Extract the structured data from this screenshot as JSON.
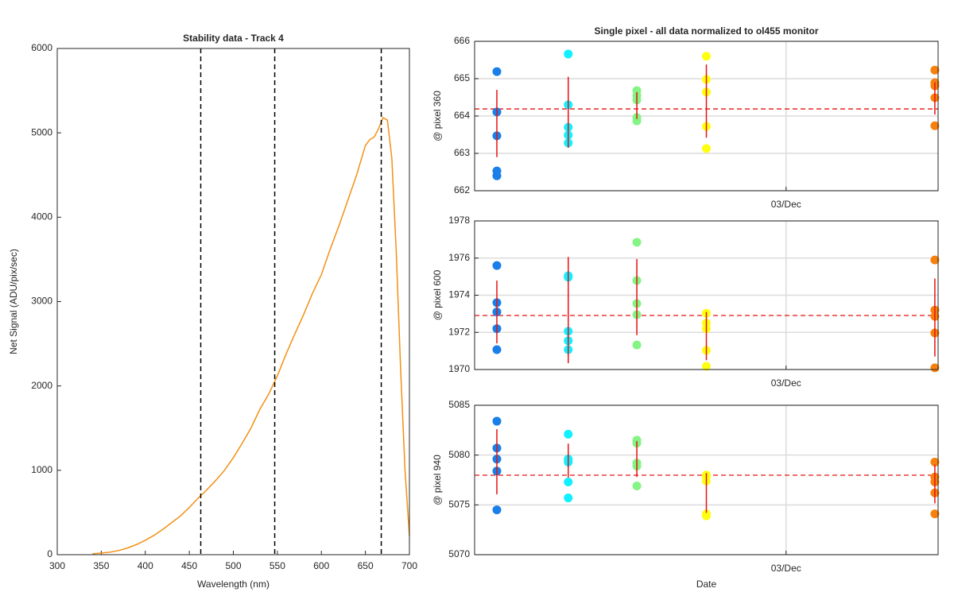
{
  "chart_data": [
    {
      "type": "line",
      "title": "Stability data - Track 4",
      "xlabel": "Wavelength (nm)",
      "ylabel": "Net Signal (ADU/pix/sec)",
      "x": [
        340,
        350,
        360,
        370,
        380,
        390,
        400,
        410,
        420,
        430,
        440,
        450,
        460,
        470,
        480,
        490,
        500,
        510,
        520,
        530,
        540,
        550,
        560,
        570,
        580,
        590,
        600,
        610,
        620,
        630,
        640,
        650,
        655,
        660,
        665,
        670,
        675,
        680,
        685,
        690,
        695,
        700
      ],
      "values": [
        10,
        20,
        30,
        50,
        80,
        120,
        170,
        230,
        300,
        380,
        460,
        560,
        670,
        770,
        880,
        1000,
        1150,
        1320,
        1500,
        1720,
        1900,
        2120,
        2380,
        2620,
        2850,
        3100,
        3320,
        3620,
        3900,
        4200,
        4500,
        4850,
        4920,
        4950,
        5050,
        5180,
        5150,
        4700,
        3600,
        2200,
        1000,
        220
      ],
      "color": "#f39014",
      "vlines": [
        463,
        547,
        668
      ],
      "xlim": [
        300,
        700
      ],
      "xticks": [
        300,
        350,
        400,
        450,
        500,
        550,
        600,
        650,
        700
      ],
      "ylim": [
        0,
        6000
      ],
      "yticks": [
        0,
        1000,
        2000,
        3000,
        4000,
        5000,
        6000
      ],
      "grid": false
    },
    {
      "type": "scatter",
      "title": "Single pixel - all data normalized to ol455 monitor",
      "ylabel": "@ pixel 360",
      "xlim": [
        0,
        10
      ],
      "xticks": [
        {
          "value": 6.72,
          "label": "03/Dec"
        }
      ],
      "ylim": [
        662,
        666
      ],
      "yticks": [
        662,
        663,
        664,
        665,
        666
      ],
      "grid": true,
      "series": [
        {
          "color": "#1a7fe8",
          "x": [
            0.48,
            0.48,
            0.48,
            0.48,
            0.48
          ],
          "values": [
            665.19,
            664.11,
            663.47,
            662.53,
            662.4
          ]
        },
        {
          "color": "#10f0ff",
          "x": [
            2.02,
            2.02,
            2.02,
            2.02,
            2.02
          ],
          "values": [
            665.66,
            664.3,
            663.7,
            663.49,
            663.28
          ]
        },
        {
          "color": "#84f484",
          "x": [
            3.5,
            3.5,
            3.5,
            3.5,
            3.5
          ],
          "values": [
            664.68,
            664.55,
            664.43,
            663.96,
            663.87
          ]
        },
        {
          "color": "#ffff10",
          "x": [
            5.0,
            5.0,
            5.0,
            5.0,
            5.0
          ],
          "values": [
            665.6,
            664.98,
            664.64,
            663.72,
            663.13
          ]
        },
        {
          "color": "#f8800c",
          "x": [
            9.93,
            9.93,
            9.93,
            9.93,
            9.93
          ],
          "values": [
            665.23,
            664.89,
            664.81,
            664.49,
            663.74
          ]
        }
      ],
      "error_bars": [
        {
          "x": 0.48,
          "value": 663.8,
          "error": 0.9
        },
        {
          "x": 2.02,
          "value": 664.1,
          "error": 0.95
        },
        {
          "x": 3.5,
          "value": 664.28,
          "error": 0.36
        },
        {
          "x": 5.0,
          "value": 664.4,
          "error": 0.98
        },
        {
          "x": 9.93,
          "value": 664.47,
          "error": 0.43
        }
      ],
      "error_color": "#e81010",
      "mean_line": 664.19
    },
    {
      "type": "scatter",
      "ylabel": "@ pixel 600",
      "xlim": [
        0,
        10
      ],
      "xticks": [
        {
          "value": 6.72,
          "label": "03/Dec"
        }
      ],
      "ylim": [
        1970,
        1978
      ],
      "yticks": [
        1970,
        1972,
        1974,
        1976,
        1978
      ],
      "grid": true,
      "series": [
        {
          "color": "#1a7fe8",
          "x": [
            0.48,
            0.48,
            0.48,
            0.48,
            0.48
          ],
          "values": [
            1975.6,
            1973.6,
            1973.1,
            1972.2,
            1971.07
          ]
        },
        {
          "color": "#10f0ff",
          "x": [
            2.02,
            2.02,
            2.02,
            2.02,
            2.02
          ],
          "values": [
            1975.05,
            1974.97,
            1972.06,
            1971.55,
            1971.07
          ]
        },
        {
          "color": "#84f484",
          "x": [
            3.5,
            3.5,
            3.5,
            3.5,
            3.5
          ],
          "values": [
            1976.85,
            1974.79,
            1973.55,
            1972.95,
            1971.32
          ]
        },
        {
          "color": "#ffff10",
          "x": [
            5.0,
            5.0,
            5.0,
            5.0,
            5.0
          ],
          "values": [
            1973.03,
            1972.5,
            1972.2,
            1971.03,
            1970.17
          ]
        },
        {
          "color": "#f8800c",
          "x": [
            9.93,
            9.93,
            9.93,
            9.93,
            9.93
          ],
          "values": [
            1975.9,
            1973.2,
            1972.86,
            1971.97,
            1970.09
          ]
        }
      ],
      "error_bars": [
        {
          "x": 0.48,
          "value": 1973.1,
          "error": 1.69
        },
        {
          "x": 2.02,
          "value": 1973.2,
          "error": 2.86
        },
        {
          "x": 3.5,
          "value": 1973.9,
          "error": 2.05
        },
        {
          "x": 5.0,
          "value": 1971.8,
          "error": 1.3
        },
        {
          "x": 9.93,
          "value": 1972.8,
          "error": 2.1
        }
      ],
      "error_color": "#e81010",
      "mean_line": 1972.91
    },
    {
      "type": "scatter",
      "ylabel": "@ pixel 940",
      "xlabel": "Date",
      "xlim": [
        0,
        10
      ],
      "xticks": [
        {
          "value": 6.72,
          "label": "03/Dec"
        }
      ],
      "ylim": [
        5070,
        5085
      ],
      "yticks": [
        5070,
        5075,
        5080,
        5085
      ],
      "grid": true,
      "series": [
        {
          "color": "#1a7fe8",
          "x": [
            0.48,
            0.48,
            0.48,
            0.48,
            0.48
          ],
          "values": [
            5083.4,
            5080.7,
            5079.6,
            5078.4,
            5074.5
          ]
        },
        {
          "color": "#10f0ff",
          "x": [
            2.02,
            2.02,
            2.02,
            2.02,
            2.02
          ],
          "values": [
            5082.1,
            5079.6,
            5079.3,
            5077.3,
            5075.7
          ]
        },
        {
          "color": "#84f484",
          "x": [
            3.5,
            3.5,
            3.5,
            3.5,
            3.5
          ],
          "values": [
            5081.5,
            5081.2,
            5079.2,
            5078.9,
            5076.9
          ]
        },
        {
          "color": "#ffff10",
          "x": [
            5.0,
            5.0,
            5.0,
            5.0,
            5.0
          ],
          "values": [
            5078.0,
            5077.8,
            5077.4,
            5074.1,
            5073.9
          ]
        },
        {
          "color": "#f8800c",
          "x": [
            9.93,
            9.93,
            9.93,
            9.93,
            9.93
          ],
          "values": [
            5079.3,
            5077.8,
            5077.3,
            5076.2,
            5074.1
          ]
        }
      ],
      "error_bars": [
        {
          "x": 0.48,
          "value": 5079.33,
          "error": 3.27
        },
        {
          "x": 2.02,
          "value": 5079.45,
          "error": 1.7
        },
        {
          "x": 3.5,
          "value": 5079.6,
          "error": 1.8
        },
        {
          "x": 5.0,
          "value": 5076.2,
          "error": 2.0
        },
        {
          "x": 9.93,
          "value": 5077.1,
          "error": 1.95
        }
      ],
      "error_color": "#e81010",
      "mean_line": 5077.98
    }
  ]
}
